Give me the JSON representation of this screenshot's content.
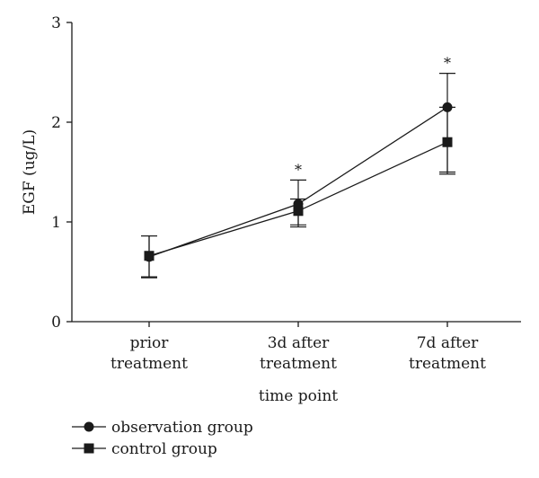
{
  "chart_data": {
    "type": "line",
    "title": "",
    "xlabel": "time point",
    "ylabel": "EGF (ug/L)",
    "ylim": [
      0,
      3
    ],
    "yticks": [
      "0",
      "1",
      "2",
      "3"
    ],
    "categories": [
      [
        "prior",
        "treatment"
      ],
      [
        "3d after",
        "treatment"
      ],
      [
        "7d after",
        "treatment"
      ]
    ],
    "series": [
      {
        "name": "observation group",
        "marker": "circle",
        "values": [
          0.65,
          1.18,
          2.15
        ],
        "err_low": [
          0.45,
          0.97,
          1.5
        ],
        "err_high": [
          0.86,
          1.42,
          2.49
        ]
      },
      {
        "name": "control group",
        "marker": "square",
        "values": [
          0.66,
          1.11,
          1.8
        ],
        "err_low": [
          0.44,
          0.95,
          1.48
        ],
        "err_high": [
          0.86,
          1.23,
          2.15
        ]
      }
    ],
    "annotations": [
      "",
      "*",
      "*"
    ],
    "legend_position": "bottom-left",
    "grid": false,
    "color": "#1a1a1a"
  }
}
